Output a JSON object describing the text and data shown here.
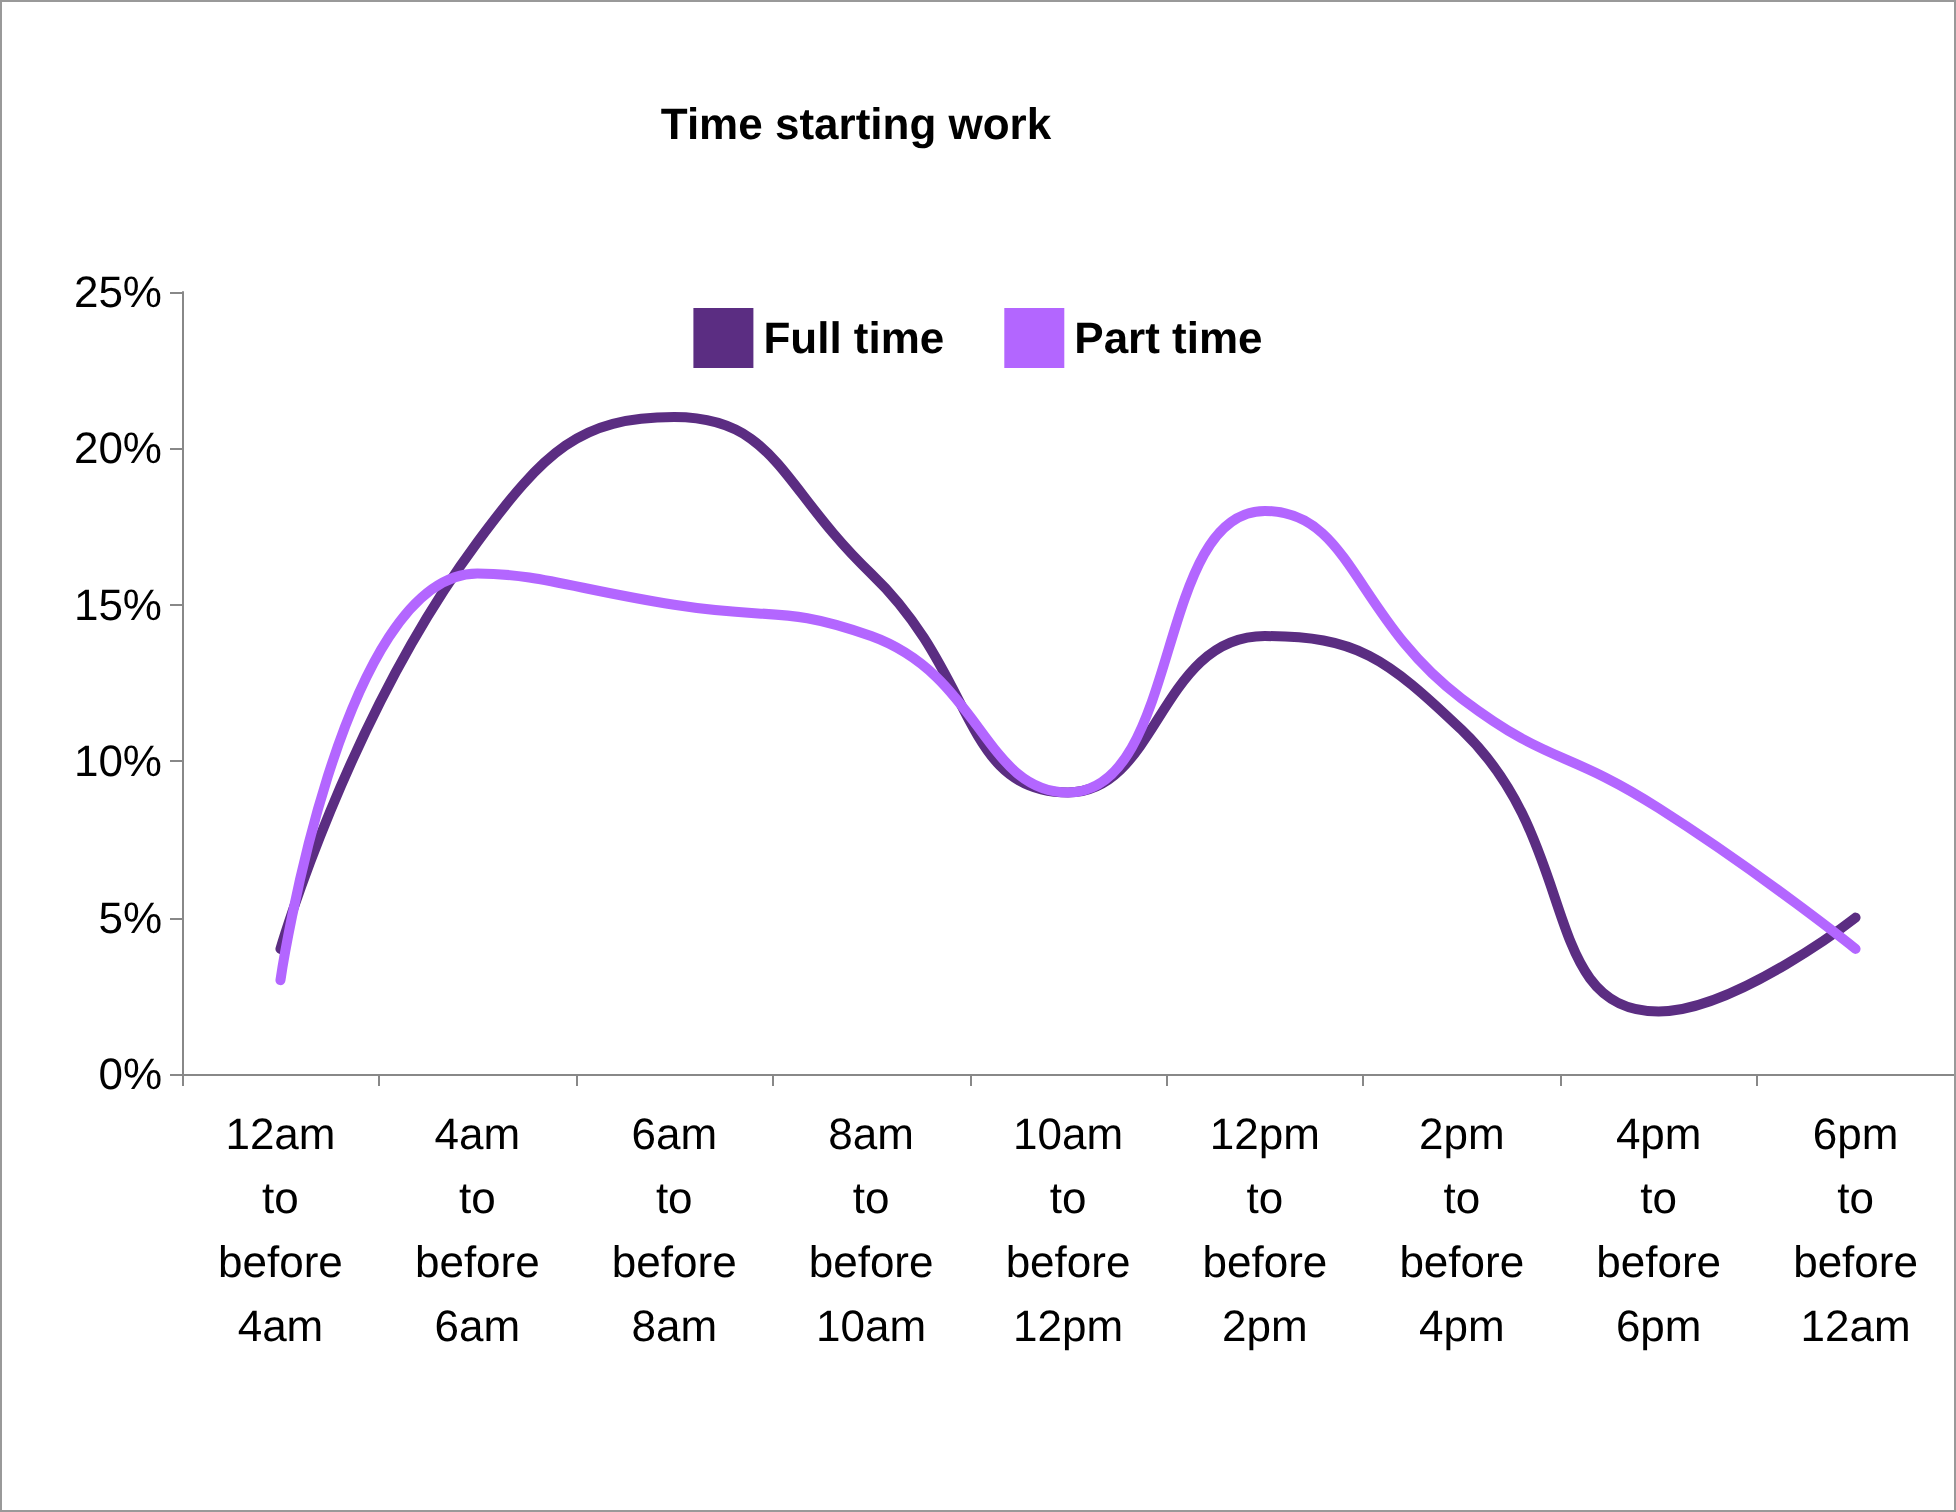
{
  "chart_data": {
    "type": "line",
    "title": "Time starting work",
    "categories": [
      "12am to before 4am",
      "4am to before 6am",
      "6am to before 8am",
      "8am to before 10am",
      "10am to before 12pm",
      "12pm to before 2pm",
      "2pm to before 4pm",
      "4pm to before 6pm",
      "6pm to before 12am"
    ],
    "series": [
      {
        "name": "Full time",
        "color": "#5b2d82",
        "values": [
          4,
          17,
          21,
          16,
          9,
          14,
          11,
          2,
          5
        ]
      },
      {
        "name": "Part time",
        "color": "#b366ff",
        "values": [
          3,
          16,
          15,
          14,
          9,
          18,
          12,
          8.5,
          4
        ]
      }
    ],
    "ylim": [
      0,
      25
    ],
    "yticks": [
      {
        "value": 0,
        "label": "0%"
      },
      {
        "value": 5,
        "label": "5%"
      },
      {
        "value": 10,
        "label": "10%"
      },
      {
        "value": 15,
        "label": "15%"
      },
      {
        "value": 20,
        "label": "20%"
      },
      {
        "value": 25,
        "label": "25%"
      }
    ],
    "grid": false,
    "legend": "top",
    "marker": "none",
    "line_style": "solid"
  }
}
